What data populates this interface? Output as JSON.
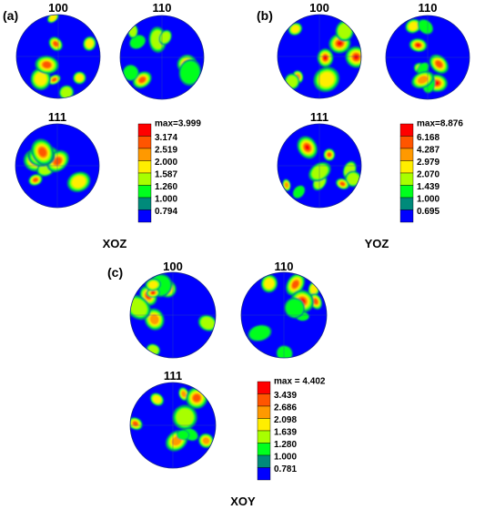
{
  "colors": {
    "blue": "#0000ff",
    "teal": "#008a7a",
    "green": "#00ff1e",
    "lime": "#a8ff00",
    "yellow": "#ffee00",
    "orange": "#ff9900",
    "darkorange": "#ff5500",
    "red": "#ff0000"
  },
  "panels": [
    {
      "id": "a",
      "label": "(a)",
      "plane": "XOZ",
      "poles": [
        "100",
        "110",
        "111"
      ],
      "legend": [
        "max=3.999",
        "3.174",
        "2.519",
        "2.000",
        "1.587",
        "1.260",
        "1.000",
        "0.794"
      ]
    },
    {
      "id": "b",
      "label": "(b)",
      "plane": "YOZ",
      "poles": [
        "100",
        "110",
        "111"
      ],
      "legend": [
        "max=8.876",
        "6.168",
        "4.287",
        "2.979",
        "2.070",
        "1.439",
        "1.000",
        "0.695"
      ]
    },
    {
      "id": "c",
      "label": "(c)",
      "plane": "XOY",
      "poles": [
        "100",
        "110",
        "111"
      ],
      "legend": [
        "max = 4.402",
        "3.439",
        "2.686",
        "2.098",
        "1.639",
        "1.280",
        "1.000",
        "0.781"
      ]
    }
  ]
}
